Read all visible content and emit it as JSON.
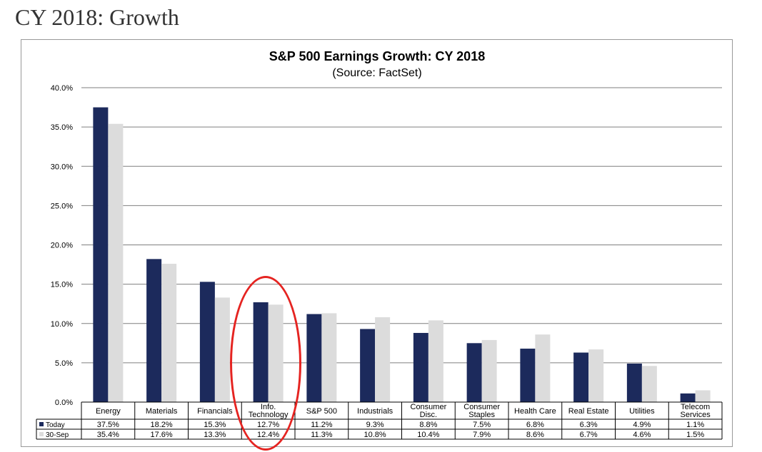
{
  "page": {
    "heading": "CY 2018: Growth"
  },
  "chart_data": {
    "type": "bar",
    "title": "S&P 500 Earnings Growth: CY 2018",
    "subtitle": "(Source: FactSet)",
    "categories": [
      [
        "Energy"
      ],
      [
        "Materials"
      ],
      [
        "Financials"
      ],
      [
        "Info.",
        "Technology"
      ],
      [
        "S&P 500"
      ],
      [
        "Industrials"
      ],
      [
        "Consumer",
        "Disc."
      ],
      [
        "Consumer",
        "Staples"
      ],
      [
        "Health Care"
      ],
      [
        "Real Estate"
      ],
      [
        "Utilities"
      ],
      [
        "Telecom",
        "Services"
      ]
    ],
    "series": [
      {
        "name": "Today",
        "color": "#1c2a5c",
        "values": [
          37.5,
          18.2,
          15.3,
          12.7,
          11.2,
          9.3,
          8.8,
          7.5,
          6.8,
          6.3,
          4.9,
          1.1
        ],
        "labels": [
          "37.5%",
          "18.2%",
          "15.3%",
          "12.7%",
          "11.2%",
          "9.3%",
          "8.8%",
          "7.5%",
          "6.8%",
          "6.3%",
          "4.9%",
          "1.1%"
        ]
      },
      {
        "name": "30-Sep",
        "color": "#dcdcdc",
        "values": [
          35.4,
          17.6,
          13.3,
          12.4,
          11.3,
          10.8,
          10.4,
          7.9,
          8.6,
          6.7,
          4.6,
          1.5
        ],
        "labels": [
          "35.4%",
          "17.6%",
          "13.3%",
          "12.4%",
          "11.3%",
          "10.8%",
          "10.4%",
          "7.9%",
          "8.6%",
          "6.7%",
          "4.6%",
          "1.5%"
        ]
      }
    ],
    "yticks": [
      "0.0%",
      "5.0%",
      "10.0%",
      "15.0%",
      "20.0%",
      "25.0%",
      "30.0%",
      "35.0%",
      "40.0%"
    ],
    "ylim": [
      0,
      40
    ],
    "grid": true,
    "legend": "data-table",
    "annotation": {
      "type": "red-ellipse",
      "highlights": "Info. Technology"
    }
  }
}
